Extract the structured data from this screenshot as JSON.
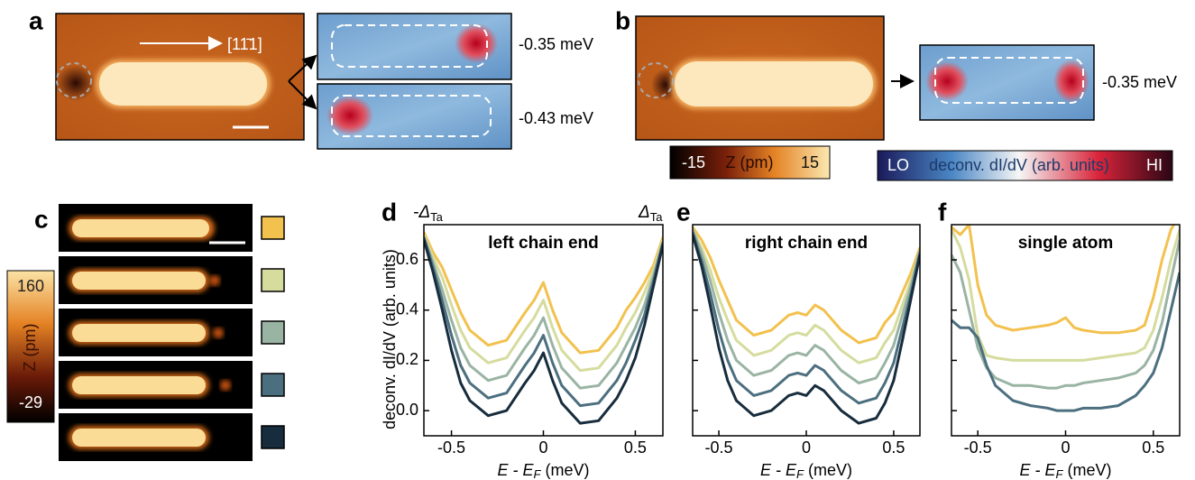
{
  "panel_a": {
    "label": "a",
    "direction": "[11̄1]",
    "energies": [
      "-0.35 meV",
      "-0.43 meV"
    ]
  },
  "panel_b": {
    "label": "b",
    "energy": "-0.35 meV"
  },
  "colorbar_topo": {
    "min": -15,
    "label": "Z (pm)",
    "max": 15
  },
  "colorbar_didv": {
    "low": "LO",
    "label": "deconv. dI/dV (arb. units)",
    "high": "HI"
  },
  "panel_c": {
    "label": "c",
    "colorbar": {
      "max": 160,
      "label": "Z (pm)",
      "min": -29
    }
  },
  "gap_labels": [
    [
      "-Δ",
      "Ta"
    ],
    [
      "Δ",
      "Ta"
    ]
  ],
  "chart_data": [
    {
      "type": "line",
      "panel": "d",
      "title": "left chain end",
      "ylabel": "deconv. dI/dV (arb. units)",
      "xlabel": [
        "E - E",
        "F",
        " (meV)"
      ],
      "x": [
        -0.65,
        -0.6,
        -0.55,
        -0.5,
        -0.45,
        -0.4,
        -0.3,
        -0.2,
        -0.1,
        -0.05,
        0,
        0.05,
        0.1,
        0.2,
        0.3,
        0.4,
        0.45,
        0.5,
        0.55,
        0.6,
        0.65
      ],
      "xlim": [
        -0.65,
        0.65
      ],
      "ylim": [
        -0.1,
        0.74
      ],
      "xticks": [
        -0.5,
        0,
        0.5
      ],
      "yticks": [
        {
          "value": 0,
          "label": "0.0"
        },
        0.2,
        0.4,
        0.6
      ],
      "series": [
        {
          "color": "#f2c14e",
          "values": [
            0.71,
            0.63,
            0.57,
            0.48,
            0.39,
            0.32,
            0.26,
            0.28,
            0.39,
            0.44,
            0.51,
            0.4,
            0.31,
            0.23,
            0.24,
            0.33,
            0.4,
            0.45,
            0.51,
            0.58,
            0.69
          ]
        },
        {
          "color": "#d5dc9e",
          "values": [
            0.7,
            0.61,
            0.53,
            0.42,
            0.32,
            0.25,
            0.19,
            0.21,
            0.32,
            0.37,
            0.44,
            0.33,
            0.24,
            0.16,
            0.17,
            0.26,
            0.33,
            0.39,
            0.47,
            0.56,
            0.68
          ]
        },
        {
          "color": "#9ab4a4",
          "values": [
            0.69,
            0.59,
            0.48,
            0.36,
            0.25,
            0.18,
            0.12,
            0.14,
            0.25,
            0.3,
            0.37,
            0.26,
            0.17,
            0.09,
            0.1,
            0.19,
            0.26,
            0.33,
            0.42,
            0.54,
            0.67
          ]
        },
        {
          "color": "#4c6f7f",
          "values": [
            0.69,
            0.57,
            0.44,
            0.3,
            0.18,
            0.11,
            0.05,
            0.07,
            0.18,
            0.23,
            0.3,
            0.19,
            0.1,
            0.02,
            0.03,
            0.12,
            0.19,
            0.28,
            0.38,
            0.52,
            0.67
          ]
        },
        {
          "color": "#172c3c",
          "values": [
            0.68,
            0.55,
            0.4,
            0.24,
            0.11,
            0.04,
            -0.02,
            0.0,
            0.11,
            0.16,
            0.23,
            0.12,
            0.03,
            -0.05,
            -0.04,
            0.05,
            0.12,
            0.21,
            0.34,
            0.5,
            0.66
          ]
        }
      ]
    },
    {
      "type": "line",
      "panel": "e",
      "title": "right chain end",
      "xlabel": [
        "E - E",
        "F",
        " (meV)"
      ],
      "x": [
        -0.65,
        -0.6,
        -0.55,
        -0.5,
        -0.45,
        -0.4,
        -0.3,
        -0.2,
        -0.1,
        -0.05,
        0,
        0.05,
        0.1,
        0.2,
        0.3,
        0.4,
        0.45,
        0.5,
        0.55,
        0.6,
        0.65
      ],
      "xlim": [
        -0.65,
        0.65
      ],
      "ylim": [
        -0.1,
        0.74
      ],
      "xticks": [
        -0.5,
        0,
        0.5
      ],
      "yticks": [
        0,
        0.2,
        0.4,
        0.6
      ],
      "ytick_labels": false,
      "series": [
        {
          "color": "#f2c14e",
          "values": [
            0.73,
            0.68,
            0.61,
            0.52,
            0.44,
            0.36,
            0.3,
            0.32,
            0.38,
            0.39,
            0.38,
            0.42,
            0.4,
            0.32,
            0.27,
            0.29,
            0.35,
            0.39,
            0.47,
            0.55,
            0.65
          ]
        },
        {
          "color": "#d5dc9e",
          "values": [
            0.72,
            0.65,
            0.56,
            0.45,
            0.36,
            0.28,
            0.22,
            0.24,
            0.3,
            0.31,
            0.3,
            0.34,
            0.32,
            0.24,
            0.19,
            0.21,
            0.27,
            0.32,
            0.42,
            0.52,
            0.64
          ]
        },
        {
          "color": "#9ab4a4",
          "values": [
            0.72,
            0.63,
            0.52,
            0.39,
            0.28,
            0.2,
            0.14,
            0.16,
            0.22,
            0.23,
            0.22,
            0.26,
            0.24,
            0.16,
            0.11,
            0.13,
            0.19,
            0.26,
            0.38,
            0.5,
            0.64
          ]
        },
        {
          "color": "#4c6f7f",
          "values": [
            0.71,
            0.6,
            0.47,
            0.32,
            0.2,
            0.12,
            0.06,
            0.08,
            0.14,
            0.15,
            0.14,
            0.18,
            0.16,
            0.08,
            0.03,
            0.05,
            0.11,
            0.19,
            0.33,
            0.47,
            0.63
          ]
        },
        {
          "color": "#172c3c",
          "values": [
            0.7,
            0.58,
            0.42,
            0.25,
            0.12,
            0.04,
            -0.02,
            0.0,
            0.06,
            0.07,
            0.06,
            0.1,
            0.08,
            0.0,
            -0.05,
            -0.03,
            0.03,
            0.12,
            0.28,
            0.45,
            0.62
          ]
        }
      ]
    },
    {
      "type": "line",
      "panel": "f",
      "title": "single atom",
      "xlabel": [
        "E - E",
        "F",
        " (meV)"
      ],
      "x": [
        -0.65,
        -0.6,
        -0.55,
        -0.5,
        -0.45,
        -0.4,
        -0.3,
        -0.2,
        -0.1,
        -0.05,
        0,
        0.05,
        0.1,
        0.2,
        0.3,
        0.4,
        0.45,
        0.5,
        0.55,
        0.6,
        0.65
      ],
      "xlim": [
        -0.65,
        0.65
      ],
      "ylim": [
        -0.1,
        0.74
      ],
      "xticks": [
        -0.5,
        0,
        0.5
      ],
      "yticks": [
        0,
        0.2,
        0.4,
        0.6
      ],
      "ytick_labels": false,
      "series": [
        {
          "color": "#f2c14e",
          "values": [
            0.73,
            0.7,
            0.74,
            0.5,
            0.38,
            0.34,
            0.32,
            0.33,
            0.34,
            0.35,
            0.37,
            0.33,
            0.32,
            0.31,
            0.31,
            0.32,
            0.34,
            0.45,
            0.6,
            0.72,
            0.78
          ]
        },
        {
          "color": "#d5dc9e",
          "values": [
            0.72,
            0.65,
            0.52,
            0.3,
            0.22,
            0.21,
            0.2,
            0.2,
            0.2,
            0.2,
            0.2,
            0.2,
            0.2,
            0.21,
            0.22,
            0.23,
            0.25,
            0.32,
            0.45,
            0.6,
            0.72
          ]
        },
        {
          "color": "#9ab4a4",
          "values": [
            0.62,
            0.55,
            0.4,
            0.25,
            0.17,
            0.13,
            0.1,
            0.1,
            0.09,
            0.09,
            0.1,
            0.1,
            0.11,
            0.12,
            0.13,
            0.15,
            0.18,
            0.24,
            0.35,
            0.52,
            0.68
          ]
        },
        {
          "color": "#4c6f7f",
          "values": [
            0.36,
            0.33,
            0.33,
            0.29,
            0.18,
            0.1,
            0.04,
            0.02,
            0.01,
            0.0,
            0.0,
            0.0,
            0.01,
            0.01,
            0.02,
            0.06,
            0.1,
            0.15,
            0.25,
            0.4,
            0.55
          ]
        }
      ]
    }
  ]
}
